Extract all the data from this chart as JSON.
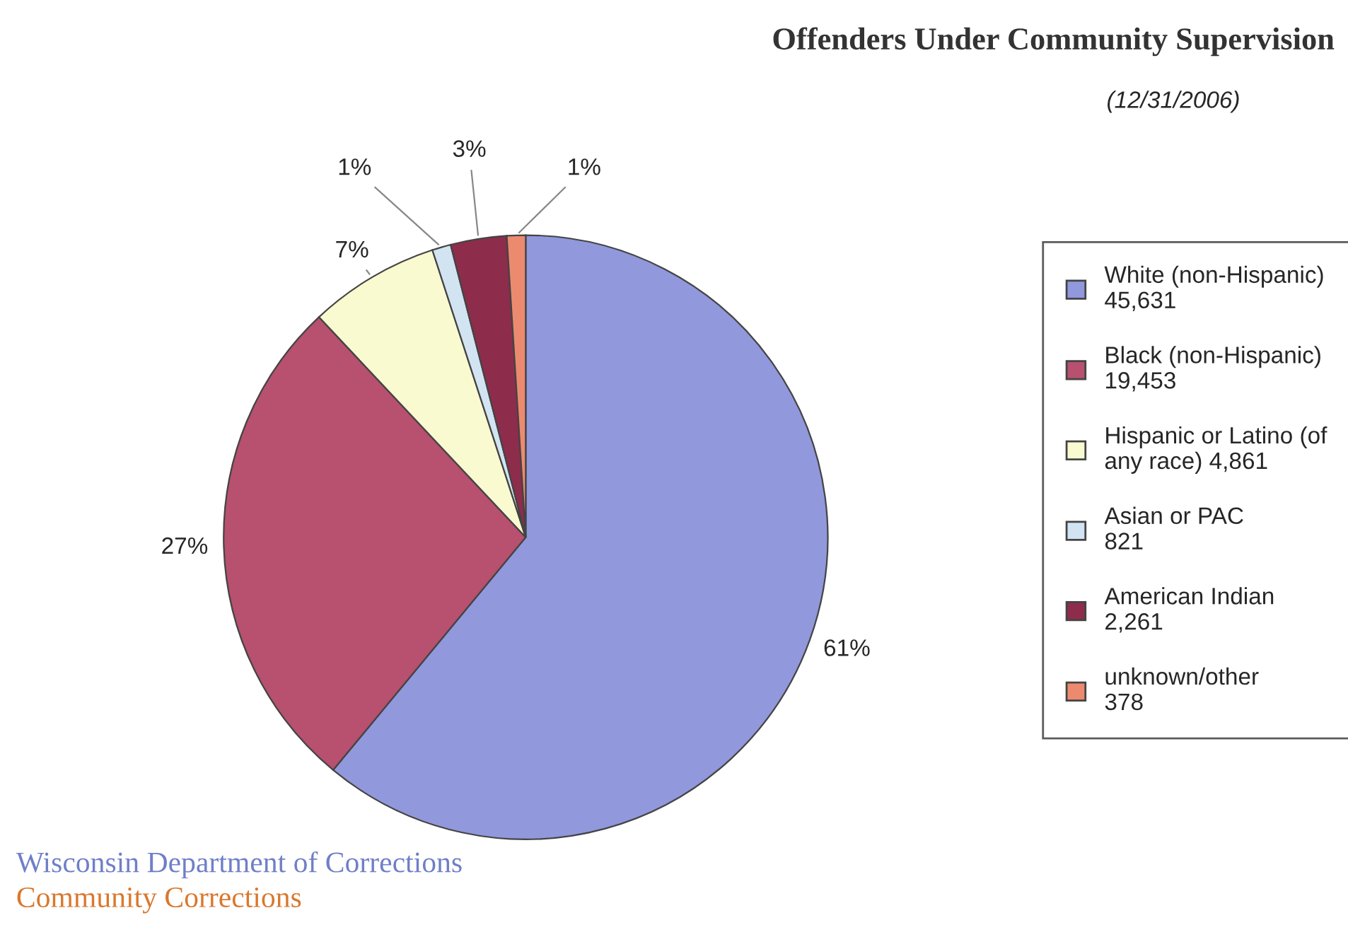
{
  "chart_data": {
    "type": "pie",
    "title": "Offenders Under Community Supervision",
    "subtitle": "(12/31/2006)",
    "categories": [
      "White (non-Hispanic)\n45,631",
      "Black (non-Hispanic)\n19,453",
      "Hispanic or Latino (of\nany race) 4,861",
      "Asian or PAC\n821",
      "American Indian\n2,261",
      "unknown/other\n378"
    ],
    "values": [
      61,
      27,
      7,
      1,
      3,
      1
    ],
    "value_labels": [
      "61%",
      "27%",
      "7%",
      "1%",
      "3%",
      "1%"
    ],
    "colors": [
      "#9198dc",
      "#b8506f",
      "#fafad0",
      "#d2e4f2",
      "#8e2c4c",
      "#ec8a70"
    ],
    "legend": "right",
    "annotations": [
      "Wisconsin Department of Corrections",
      "Community Corrections"
    ]
  }
}
